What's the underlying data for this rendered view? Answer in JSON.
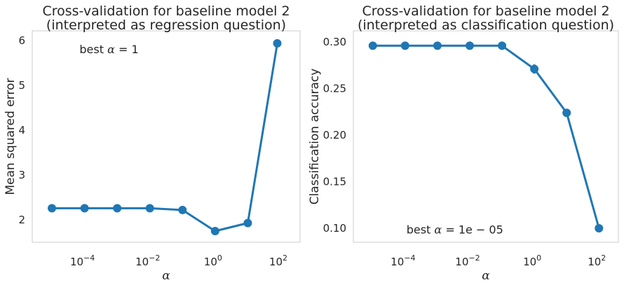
{
  "chart_data": [
    {
      "type": "line",
      "title": [
        "Cross-validation for baseline model 2",
        "(interpreted as regression question)"
      ],
      "xlabel": "α",
      "ylabel": "Mean squared error",
      "xscale": "log",
      "xlim": [
        2.5e-06,
        400
      ],
      "ylim": [
        1.5,
        6.22
      ],
      "xticks": [
        {
          "value": 0.0001,
          "base": "10",
          "exp": "−4"
        },
        {
          "value": 0.01,
          "base": "10",
          "exp": "−2"
        },
        {
          "value": 1,
          "base": "10",
          "exp": "0"
        },
        {
          "value": 100,
          "base": "10",
          "exp": "2"
        }
      ],
      "yticks": [
        {
          "value": 2,
          "label": "2"
        },
        {
          "value": 3,
          "label": "3"
        },
        {
          "value": 4,
          "label": "4"
        },
        {
          "value": 5,
          "label": "5"
        },
        {
          "value": 6,
          "label": "6"
        }
      ],
      "x": [
        1e-05,
        0.0001,
        0.001,
        0.01,
        0.1,
        1,
        10,
        80
      ],
      "y": [
        2.26,
        2.26,
        2.26,
        2.26,
        2.22,
        1.75,
        1.93,
        5.94
      ],
      "annotation": {
        "prefix": "best ",
        "symbol": "α",
        "rest": " = 1",
        "x": 7e-05,
        "y": 5.72
      },
      "color": "#1f77b4",
      "grid": false
    },
    {
      "type": "line",
      "title": [
        "Cross-validation for baseline model 2",
        "(interpreted as classification question)"
      ],
      "xlabel": "α",
      "ylabel": "Classification accuracy",
      "xscale": "log",
      "xlim": [
        2.5e-06,
        400
      ],
      "ylim": [
        0.085,
        0.312
      ],
      "xticks": [
        {
          "value": 0.0001,
          "base": "10",
          "exp": "−4"
        },
        {
          "value": 0.01,
          "base": "10",
          "exp": "−2"
        },
        {
          "value": 1,
          "base": "10",
          "exp": "0"
        },
        {
          "value": 100,
          "base": "10",
          "exp": "2"
        }
      ],
      "yticks": [
        {
          "value": 0.1,
          "label": "0.10"
        },
        {
          "value": 0.15,
          "label": "0.15"
        },
        {
          "value": 0.2,
          "label": "0.20"
        },
        {
          "value": 0.25,
          "label": "0.25"
        },
        {
          "value": 0.3,
          "label": "0.30"
        }
      ],
      "x": [
        1e-05,
        0.0001,
        0.001,
        0.01,
        0.1,
        1,
        10,
        100
      ],
      "y": [
        0.296,
        0.296,
        0.296,
        0.296,
        0.296,
        0.271,
        0.224,
        0.1
      ],
      "err": [
        0.004,
        0.004,
        0.004,
        0.004,
        0.004,
        0.005,
        0.003,
        0.003
      ],
      "annotation": {
        "prefix": "best ",
        "symbol": "α",
        "rest": " = 1e − 05",
        "x": 0.00011,
        "y": 0.0945
      },
      "color": "#1f77b4",
      "grid": false
    }
  ]
}
